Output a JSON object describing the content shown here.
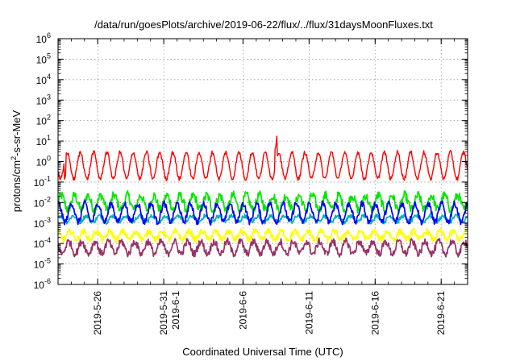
{
  "chart_data": {
    "type": "line",
    "title": "/data/run/goesPlots/archive/2019-06-22/flux/../flux/31daysMoonFluxes.txt",
    "xlabel": "Coordinated Universal Time (UTC)",
    "ylabel": "protons/cm²-s-sr-MeV",
    "ylabel_parts": {
      "before": "protons/cm",
      "sup": "2",
      "after": "-s-sr-MeV"
    },
    "yscale": "log",
    "ylim_exponents": [
      -6,
      6
    ],
    "y_ticks": [
      {
        "base": "10",
        "exp": "-6"
      },
      {
        "base": "10",
        "exp": "-5"
      },
      {
        "base": "10",
        "exp": "-4"
      },
      {
        "base": "10",
        "exp": "-3"
      },
      {
        "base": "10",
        "exp": "-2"
      },
      {
        "base": "10",
        "exp": "-1"
      },
      {
        "base": "10",
        "exp": "0"
      },
      {
        "base": "10",
        "exp": "1"
      },
      {
        "base": "10",
        "exp": "2"
      },
      {
        "base": "10",
        "exp": "3"
      },
      {
        "base": "10",
        "exp": "4"
      },
      {
        "base": "10",
        "exp": "5"
      },
      {
        "base": "10",
        "exp": "6"
      }
    ],
    "x_start": "2019-05-23",
    "x_end": "2019-06-23",
    "x_ticks": [
      {
        "date": "2019-05-26",
        "labels": [
          "2019-5-26"
        ]
      },
      {
        "date": "2019-05-31",
        "labels": [
          "2019-5-31",
          "2019-6-1"
        ]
      },
      {
        "date": "2019-06-06",
        "labels": [
          "2019-6-6"
        ]
      },
      {
        "date": "2019-06-11",
        "labels": [
          "2019-6-11"
        ]
      },
      {
        "date": "2019-06-16",
        "labels": [
          "2019-6-16"
        ]
      },
      {
        "date": "2019-06-21",
        "labels": [
          "2019-6-21"
        ]
      }
    ],
    "grid": true,
    "series": [
      {
        "color": "#00e600",
        "center_log10": -2.0,
        "amplitude": 0.35,
        "noise": 0.45
      },
      {
        "color": "#00b3b3",
        "center_log10": -2.8,
        "amplitude": 0.15,
        "noise": 0.2
      },
      {
        "color": "#0000ff",
        "center_log10": -2.5,
        "amplitude": 0.45,
        "noise": 0.3
      },
      {
        "color": "#ffff00",
        "center_log10": -3.6,
        "amplitude": 0.2,
        "noise": 0.3
      },
      {
        "color": "#993366",
        "center_log10": -4.2,
        "amplitude": 0.3,
        "noise": 0.35
      },
      {
        "color": "#ff0000",
        "center_log10": -0.2,
        "amplitude": 0.65,
        "noise": 0.2
      }
    ]
  }
}
